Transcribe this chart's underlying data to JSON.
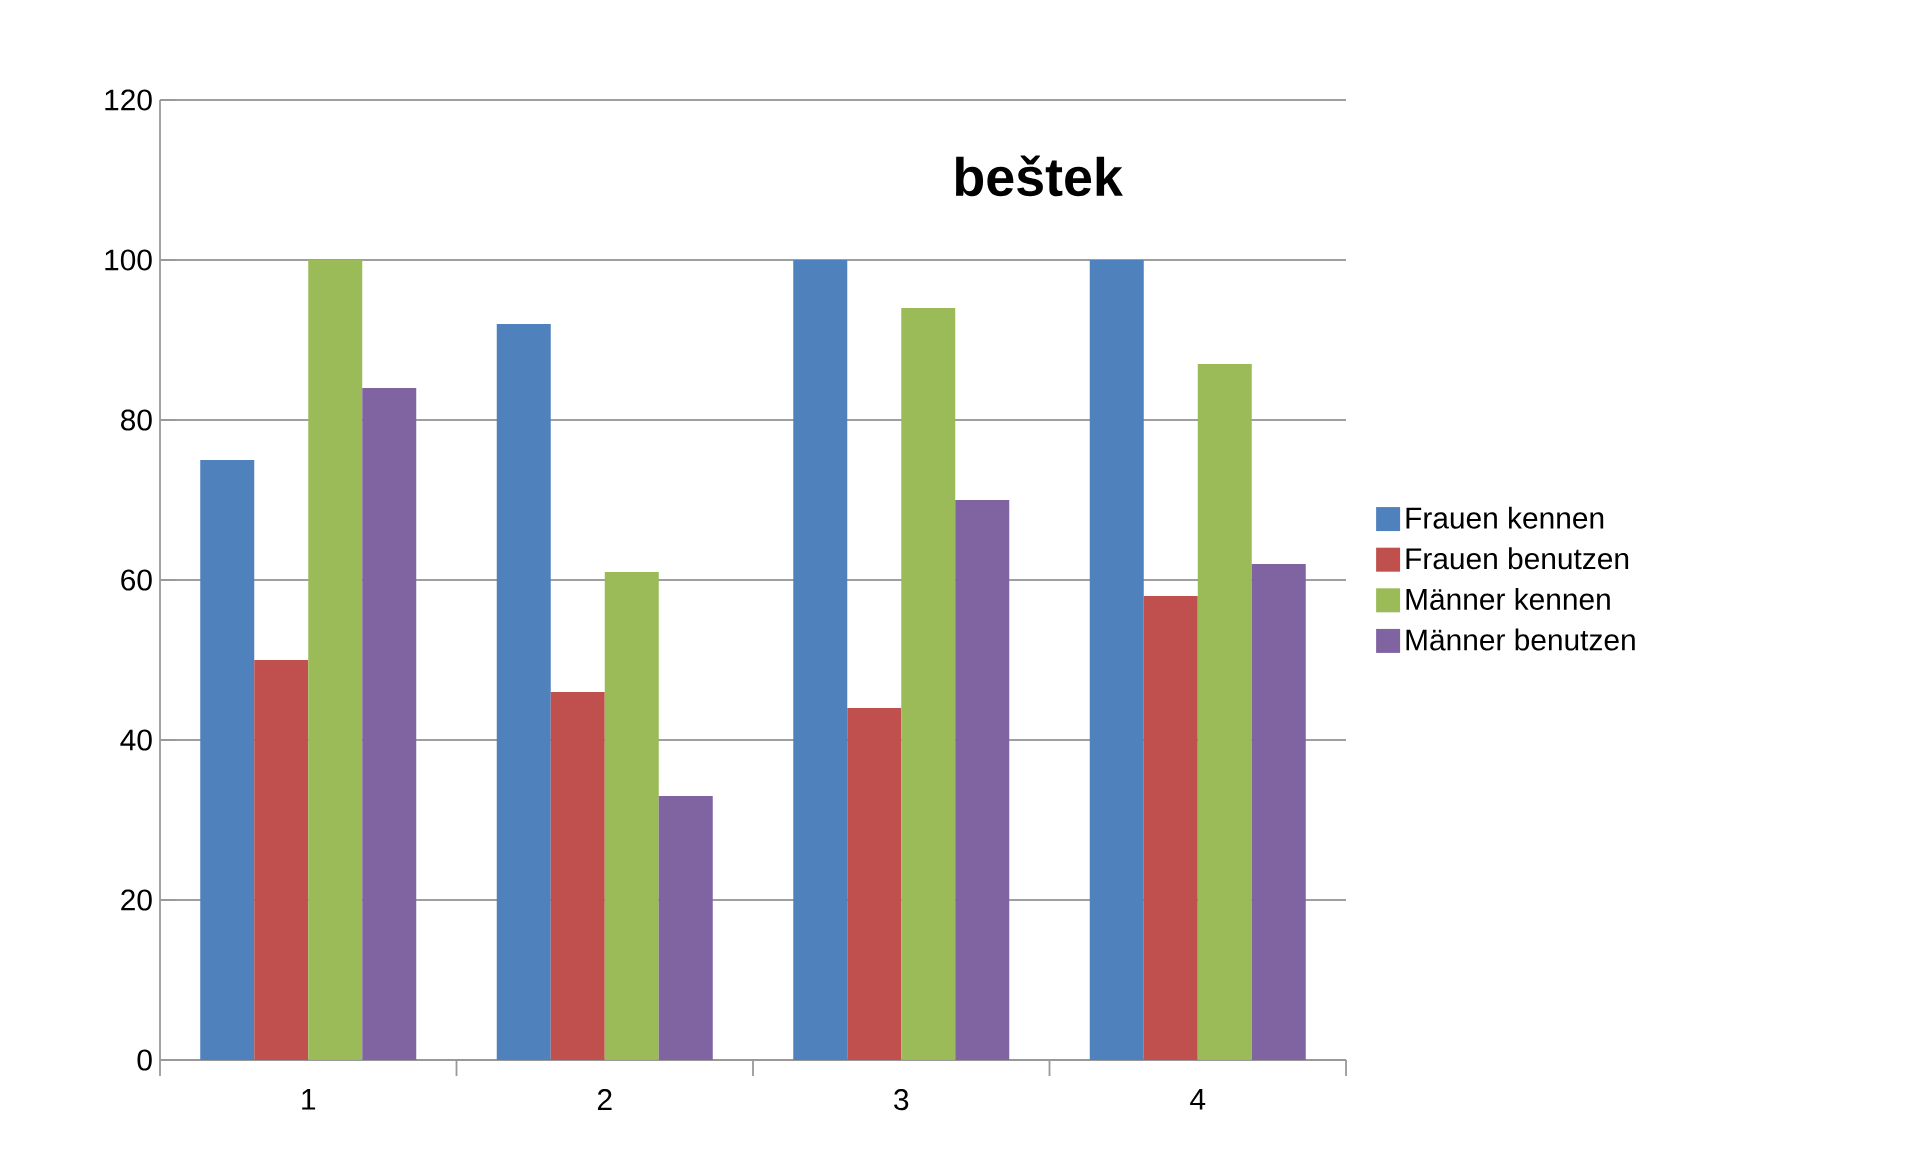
{
  "chart_data": {
    "type": "bar",
    "title": "beštek",
    "categories": [
      "1",
      "2",
      "3",
      "4"
    ],
    "series": [
      {
        "name": "Frauen kennen",
        "color": "#4f81bd",
        "values": [
          75,
          92,
          100,
          100
        ]
      },
      {
        "name": "Frauen benutzen",
        "color": "#c0504d",
        "values": [
          50,
          46,
          44,
          58
        ]
      },
      {
        "name": "Männer kennen",
        "color": "#9bbb59",
        "values": [
          100,
          61,
          94,
          87
        ]
      },
      {
        "name": "Männer benutzen",
        "color": "#8064a2",
        "values": [
          84,
          33,
          70,
          62
        ]
      }
    ],
    "ylim": [
      0,
      120
    ],
    "yticks": [
      0,
      20,
      40,
      60,
      80,
      100,
      120
    ],
    "grid": "y",
    "legend": "right"
  }
}
